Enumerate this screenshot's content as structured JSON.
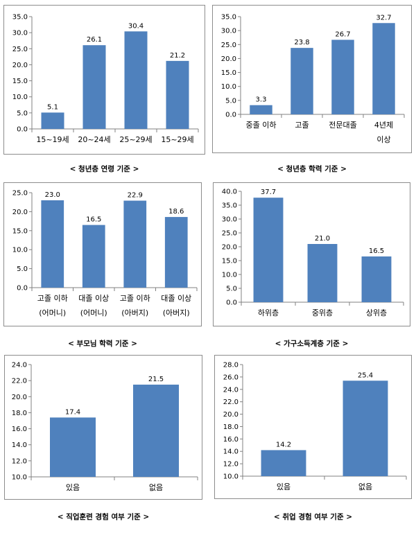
{
  "bar_color": "#4f81bd",
  "chart_data": [
    {
      "type": "bar",
      "caption": "< 청년층 연령 기준 >",
      "ylim": [
        0,
        35
      ],
      "yticks": [
        "0.0",
        "5.0",
        "10.0",
        "15.0",
        "20.0",
        "25.0",
        "30.0",
        "35.0"
      ],
      "categories": [
        [
          "15~19세"
        ],
        [
          "20~24세"
        ],
        [
          "25~29세"
        ],
        [
          "15~29세"
        ]
      ],
      "values": [
        5.1,
        26.1,
        30.4,
        21.2
      ],
      "value_labels": [
        "5.1",
        "26.1",
        "30.4",
        "21.2"
      ]
    },
    {
      "type": "bar",
      "caption": "< 청년층 학력 기준 >",
      "ylim": [
        0,
        35
      ],
      "yticks": [
        "0.0",
        "5.0",
        "10.0",
        "15.0",
        "20.0",
        "25.0",
        "30.0",
        "35.0"
      ],
      "categories": [
        [
          "중졸 이하"
        ],
        [
          "고졸"
        ],
        [
          "전문대졸"
        ],
        [
          "4년제",
          "이상"
        ]
      ],
      "values": [
        3.3,
        23.8,
        26.7,
        32.7
      ],
      "value_labels": [
        "3.3",
        "23.8",
        "26.7",
        "32.7"
      ]
    },
    {
      "type": "bar",
      "caption": "< 부모님 학력 기준 >",
      "ylim": [
        0,
        25
      ],
      "yticks": [
        "0.0",
        "5.0",
        "10.0",
        "15.0",
        "20.0",
        "25.0"
      ],
      "categories": [
        [
          "고졸 이하",
          "(어머니)"
        ],
        [
          "대졸 이상",
          "(어머니)"
        ],
        [
          "고졸 이하",
          "(아버지)"
        ],
        [
          "대졸 이상",
          "(아버지)"
        ]
      ],
      "values": [
        23.0,
        16.5,
        22.9,
        18.6
      ],
      "value_labels": [
        "23.0",
        "16.5",
        "22.9",
        "18.6"
      ]
    },
    {
      "type": "bar",
      "caption": "< 가구소득계층 기준 >",
      "ylim": [
        0,
        40
      ],
      "yticks": [
        "0.0",
        "5.0",
        "10.0",
        "15.0",
        "20.0",
        "25.0",
        "30.0",
        "35.0",
        "40.0"
      ],
      "categories": [
        [
          "하위층"
        ],
        [
          "중위층"
        ],
        [
          "상위층"
        ]
      ],
      "values": [
        37.7,
        21.0,
        16.5
      ],
      "value_labels": [
        "37.7",
        "21.0",
        "16.5"
      ]
    },
    {
      "type": "bar",
      "caption": "< 직업훈련 경험 여부 기준 >",
      "ylim": [
        10,
        24
      ],
      "yticks": [
        "10.0",
        "12.0",
        "14.0",
        "16.0",
        "18.0",
        "20.0",
        "22.0",
        "24.0"
      ],
      "categories": [
        [
          "있음"
        ],
        [
          "없음"
        ]
      ],
      "values": [
        17.4,
        21.5
      ],
      "value_labels": [
        "17.4",
        "21.5"
      ]
    },
    {
      "type": "bar",
      "caption": "< 취업 경험 여부 기준 >",
      "ylim": [
        10,
        28
      ],
      "yticks": [
        "10.0",
        "12.0",
        "14.0",
        "16.0",
        "18.0",
        "20.0",
        "22.0",
        "24.0",
        "26.0",
        "28.0"
      ],
      "categories": [
        [
          "있음"
        ],
        [
          "없음"
        ]
      ],
      "values": [
        14.2,
        25.4
      ],
      "value_labels": [
        "14.2",
        "25.4"
      ]
    }
  ]
}
